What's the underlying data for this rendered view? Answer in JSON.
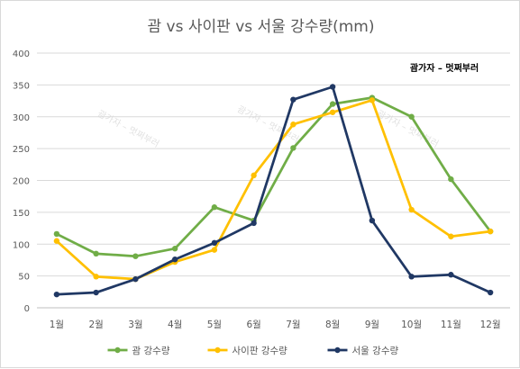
{
  "chart_data": {
    "type": "line",
    "title": "괌 vs 사이판 vs 서울 강수량(mm)",
    "annotation": "괌가자 – 멋쩌부러",
    "watermark": "괌가자 – 멋쩌부러",
    "categories": [
      "1월",
      "2월",
      "3월",
      "4월",
      "5월",
      "6월",
      "7월",
      "8월",
      "9월",
      "10월",
      "11월",
      "12월"
    ],
    "ylim": [
      0,
      400
    ],
    "yticks": [
      "0",
      "50",
      "100",
      "150",
      "200",
      "250",
      "300",
      "350",
      "400"
    ],
    "grid": true,
    "legend_position": "bottom",
    "series": [
      {
        "name": "괌 강수량",
        "color": "#70ad47",
        "values": [
          116,
          85,
          81,
          93,
          158,
          137,
          251,
          320,
          330,
          300,
          202,
          120
        ]
      },
      {
        "name": "사이판 강수량",
        "color": "#ffc000",
        "values": [
          105,
          49,
          45,
          72,
          91,
          208,
          288,
          307,
          326,
          154,
          112,
          120
        ]
      },
      {
        "name": "서울 강수량",
        "color": "#203864",
        "values": [
          21,
          24,
          45,
          76,
          102,
          133,
          327,
          347,
          137,
          49,
          52,
          24
        ]
      }
    ]
  }
}
